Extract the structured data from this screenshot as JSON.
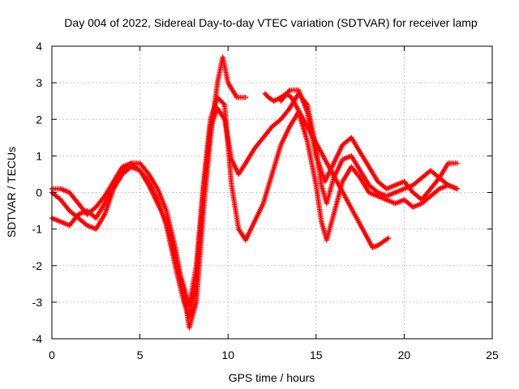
{
  "chart_data": {
    "type": "scatter",
    "title": "Day 004 of 2022, Sidereal Day-to-day VTEC variation (SDTVAR) for receiver lamp",
    "xlabel": "GPS time / hours",
    "ylabel": "SDTVAR / TECUs",
    "xlim": [
      0,
      25
    ],
    "ylim": [
      -4,
      4
    ],
    "xticks": [
      "0",
      "5",
      "10",
      "15",
      "20",
      "25"
    ],
    "yticks": [
      "-4",
      "-3",
      "-2",
      "-1",
      "0",
      "1",
      "2",
      "3",
      "4"
    ],
    "grid": true,
    "marker": "+",
    "color": "#ff0000",
    "series": [
      {
        "name": "",
        "x": [
          0.0,
          0.5,
          1.0,
          1.5,
          2.0,
          2.5,
          3.0,
          3.5,
          4.0,
          4.5,
          5.0,
          5.5,
          6.0,
          6.5,
          7.0,
          7.5,
          7.8,
          8.2,
          8.6,
          9.0,
          9.4,
          9.7,
          10.0,
          10.5,
          11.0,
          11.5,
          12.0,
          12.5,
          13.0,
          13.5,
          14.0,
          14.5,
          15.0,
          15.5,
          16.0,
          16.5,
          17.0,
          17.5,
          18.0,
          18.5,
          19.0,
          19.5,
          20.0,
          20.5,
          21.0,
          21.5,
          22.0,
          22.5,
          23.0
        ],
        "y": [
          0.1,
          0.1,
          0.0,
          -0.3,
          -0.6,
          -0.4,
          -0.1,
          0.3,
          0.7,
          0.8,
          0.8,
          0.5,
          0.1,
          -0.5,
          -1.5,
          -2.8,
          -3.7,
          -3.0,
          -0.5,
          1.5,
          3.0,
          3.7,
          3.0,
          2.6,
          2.6,
          null,
          null,
          null,
          2.5,
          2.8,
          2.8,
          2.2,
          1.0,
          0.3,
          0.8,
          1.3,
          1.5,
          1.1,
          0.7,
          0.3,
          0.1,
          0.2,
          0.3,
          0.0,
          -0.2,
          0.1,
          0.4,
          0.8,
          0.8
        ]
      },
      {
        "name": "",
        "x": [
          0.0,
          0.5,
          1.0,
          1.5,
          2.0,
          2.5,
          3.0,
          3.5,
          4.0,
          4.5,
          5.0,
          5.5,
          6.0,
          6.5,
          7.0,
          7.5,
          7.8,
          8.2,
          8.6,
          9.0,
          9.4,
          9.8,
          10.2,
          10.6,
          11.0,
          11.5,
          12.0,
          12.5,
          13.0,
          13.5,
          14.0,
          14.5,
          15.0,
          15.3,
          15.6,
          16.0,
          16.5,
          17.0,
          17.5,
          18.0,
          18.5,
          19.0,
          19.5,
          20.0,
          20.5,
          21.0,
          21.5,
          22.0,
          22.5,
          23.0
        ],
        "y": [
          0.0,
          -0.2,
          -0.5,
          -0.7,
          -0.9,
          -1.0,
          -0.6,
          0.1,
          0.5,
          0.7,
          0.6,
          0.3,
          -0.2,
          -0.9,
          -2.0,
          -3.0,
          -3.4,
          -2.4,
          0.0,
          1.8,
          2.3,
          2.0,
          0.9,
          0.5,
          0.8,
          1.2,
          1.5,
          1.8,
          2.0,
          2.3,
          2.7,
          2.4,
          1.2,
          0.2,
          -0.3,
          0.4,
          0.9,
          1.0,
          0.6,
          0.2,
          0.0,
          -0.1,
          0.0,
          0.1,
          0.2,
          0.4,
          0.6,
          0.4,
          0.2,
          0.1
        ]
      },
      {
        "name": "",
        "x": [
          0.0,
          0.5,
          1.0,
          1.5,
          2.0,
          2.5,
          3.0,
          3.5,
          4.0,
          4.5,
          5.0,
          5.5,
          6.0,
          6.5,
          7.0,
          7.5,
          7.8,
          8.2,
          8.6,
          9.0,
          9.4,
          9.8,
          10.2,
          10.6,
          11.0,
          11.5,
          12.0,
          12.5,
          13.0,
          13.5,
          14.0,
          14.5,
          15.0,
          15.3,
          15.6,
          16.0,
          16.5,
          17.0,
          17.5,
          18.0,
          18.5,
          19.0,
          19.5,
          20.0,
          20.5,
          21.0,
          21.5,
          22.0,
          22.5,
          23.0
        ],
        "y": [
          -0.7,
          -0.8,
          -0.9,
          -0.6,
          -0.5,
          -0.7,
          -0.3,
          0.2,
          0.6,
          0.8,
          0.6,
          0.2,
          -0.3,
          -0.8,
          -1.8,
          -2.6,
          -3.1,
          -2.0,
          0.2,
          2.0,
          2.6,
          2.4,
          0.2,
          -1.0,
          -1.3,
          -0.8,
          -0.3,
          0.5,
          1.3,
          1.8,
          2.2,
          1.4,
          0.2,
          -0.8,
          -1.3,
          -0.6,
          0.3,
          0.7,
          0.4,
          0.0,
          -0.1,
          -0.2,
          -0.3,
          -0.2,
          -0.4,
          -0.3,
          -0.1,
          0.1,
          0.2,
          0.1
        ]
      },
      {
        "name": "",
        "x": [
          12.1,
          12.3,
          12.6,
          13.0,
          13.3,
          13.6,
          18.2,
          18.5,
          18.8,
          19.1
        ],
        "y": [
          2.7,
          2.6,
          2.5,
          2.6,
          2.7,
          2.6,
          -1.5,
          -1.45,
          -1.35,
          -1.25
        ]
      }
    ]
  }
}
